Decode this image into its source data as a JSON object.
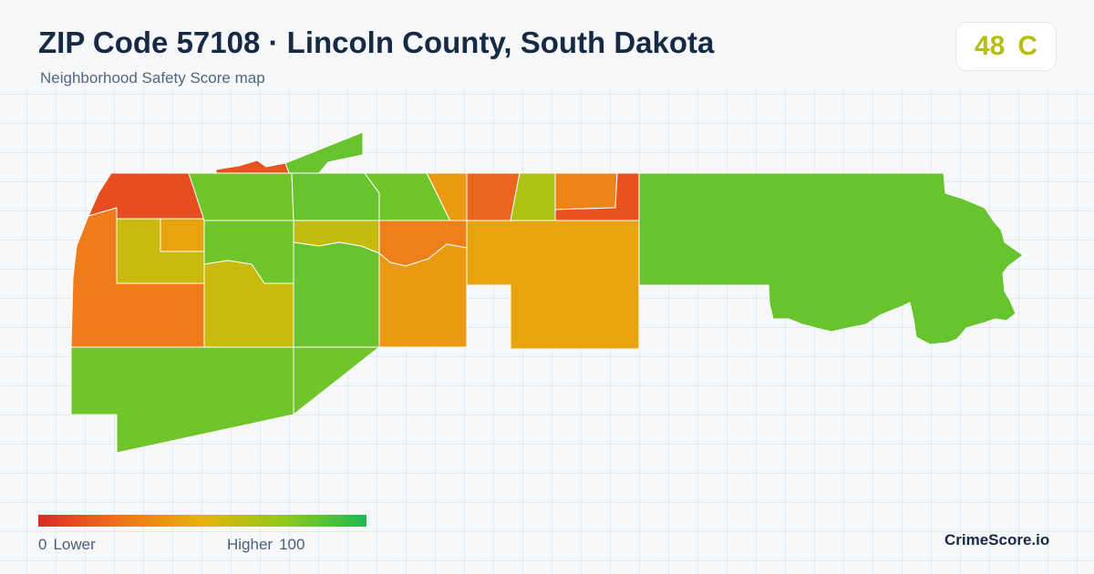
{
  "header": {
    "title": "ZIP Code 57108 · Lincoln County, South Dakota",
    "subtitle": "Neighborhood Safety Score map"
  },
  "score": {
    "value": "48",
    "grade": "C",
    "color": "#b7be12"
  },
  "map": {
    "score_scale": {
      "min": 0,
      "max": 100
    },
    "regions": [
      {
        "id": "nw-corner",
        "score": 12
      },
      {
        "id": "north-strip",
        "score": 14
      },
      {
        "id": "north-sliver",
        "score": 84
      },
      {
        "id": "n-1",
        "score": 82
      },
      {
        "id": "n-2",
        "score": 84
      },
      {
        "id": "n-3",
        "score": 82
      },
      {
        "id": "n-4",
        "score": 40
      },
      {
        "id": "n-5",
        "score": 20
      },
      {
        "id": "n-6",
        "score": 66
      },
      {
        "id": "n-7",
        "score": 32
      },
      {
        "id": "n-8",
        "score": 14
      },
      {
        "id": "west",
        "score": 28
      },
      {
        "id": "w-inner",
        "score": 58
      },
      {
        "id": "w-orange-box",
        "score": 44
      },
      {
        "id": "c-1",
        "score": 82
      },
      {
        "id": "c-2",
        "score": 58
      },
      {
        "id": "c-3",
        "score": 60
      },
      {
        "id": "c-4",
        "score": 84
      },
      {
        "id": "c-5",
        "score": 30
      },
      {
        "id": "c-6",
        "score": 40
      },
      {
        "id": "c-7",
        "score": 44
      },
      {
        "id": "east",
        "score": 84
      },
      {
        "id": "south",
        "score": 82
      },
      {
        "id": "south-mid",
        "score": 82
      }
    ]
  },
  "legend": {
    "low_value": "0",
    "low_label": "Lower",
    "high_label": "Higher",
    "high_value": "100",
    "colors": [
      "#dc2b26",
      "#f0731c",
      "#e6b308",
      "#8fca1a",
      "#1fb953"
    ]
  },
  "brand": "CrimeScore.io"
}
